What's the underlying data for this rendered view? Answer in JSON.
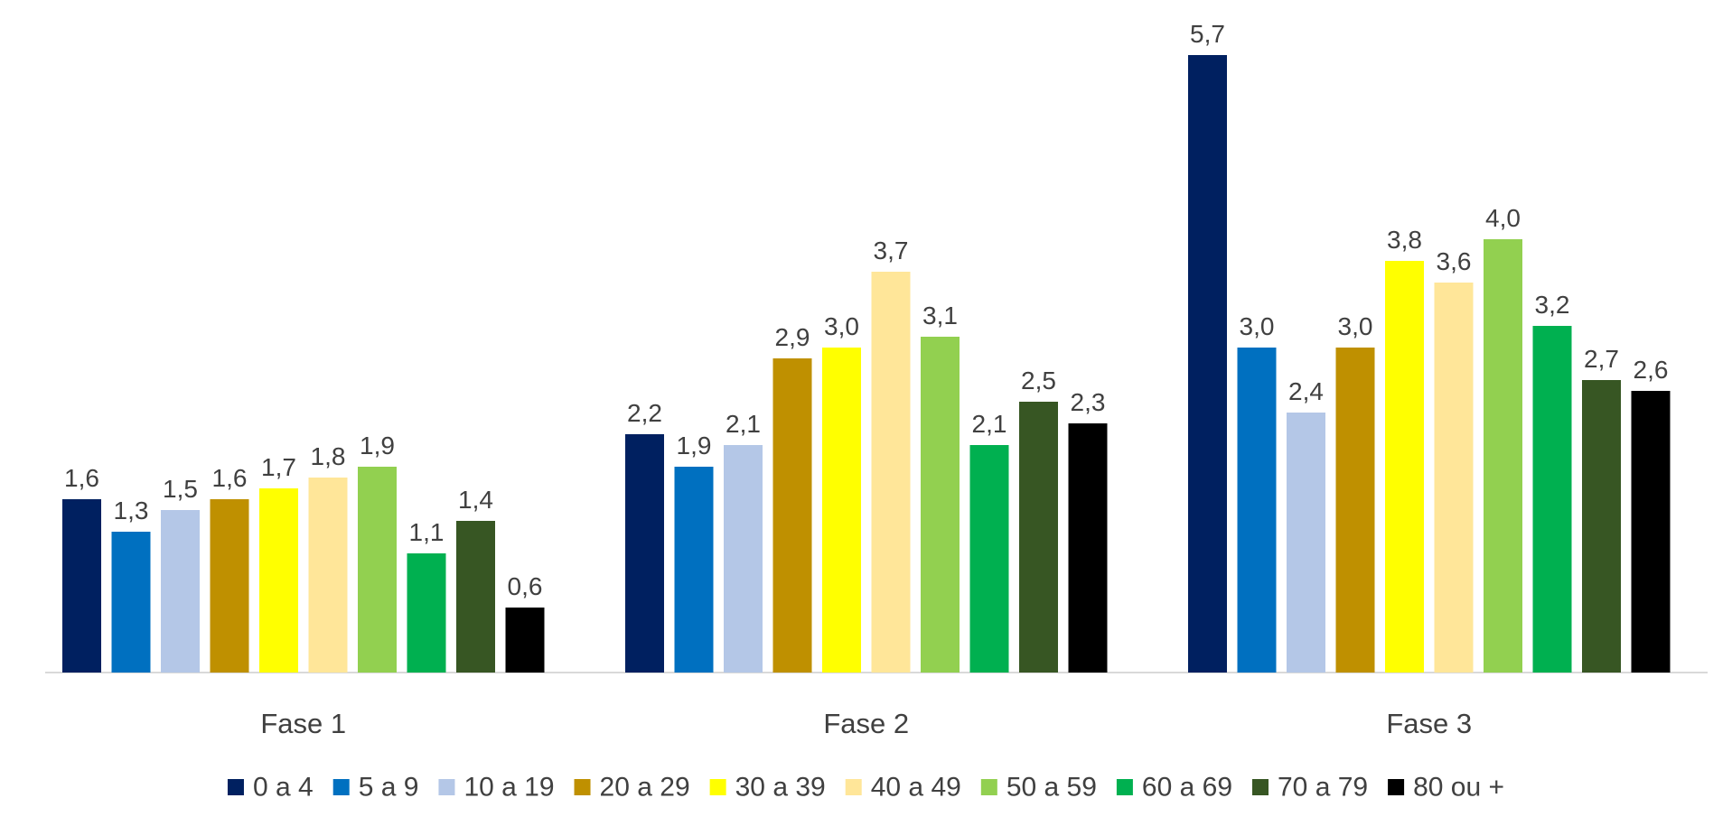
{
  "chart_data": {
    "type": "bar",
    "categories": [
      "Fase 1",
      "Fase 2",
      "Fase 3"
    ],
    "series": [
      {
        "name": "0 a 4",
        "color": "#002060",
        "values": [
          1.6,
          2.2,
          5.7
        ],
        "labels": [
          "1,6",
          "2,2",
          "5,7"
        ]
      },
      {
        "name": "5 a 9",
        "color": "#0070C0",
        "values": [
          1.3,
          1.9,
          3.0
        ],
        "labels": [
          "1,3",
          "1,9",
          "3,0"
        ]
      },
      {
        "name": "10 a 19",
        "color": "#B4C7E7",
        "values": [
          1.5,
          2.1,
          2.4
        ],
        "labels": [
          "1,5",
          "2,1",
          "2,4"
        ]
      },
      {
        "name": "20 a 29",
        "color": "#BF9000",
        "values": [
          1.6,
          2.9,
          3.0
        ],
        "labels": [
          "1,6",
          "2,9",
          "3,0"
        ]
      },
      {
        "name": "30 a 39",
        "color": "#FFFF00",
        "values": [
          1.7,
          3.0,
          3.8
        ],
        "labels": [
          "1,7",
          "3,0",
          "3,8"
        ]
      },
      {
        "name": "40 a 49",
        "color": "#FFE699",
        "values": [
          1.8,
          3.7,
          3.6
        ],
        "labels": [
          "1,8",
          "3,7",
          "3,6"
        ]
      },
      {
        "name": "50 a 59",
        "color": "#92D050",
        "values": [
          1.9,
          3.1,
          4.0
        ],
        "labels": [
          "1,9",
          "3,1",
          "4,0"
        ]
      },
      {
        "name": "60 a 69",
        "color": "#00B050",
        "values": [
          1.1,
          2.1,
          3.2
        ],
        "labels": [
          "1,1",
          "2,1",
          "3,2"
        ]
      },
      {
        "name": "70 a 79",
        "color": "#375623",
        "values": [
          1.4,
          2.5,
          2.7
        ],
        "labels": [
          "1,4",
          "2,5",
          "2,7"
        ]
      },
      {
        "name": "80 ou +",
        "color": "#000000",
        "values": [
          0.6,
          2.3,
          2.6
        ],
        "labels": [
          "0,6",
          "2,3",
          "2,6"
        ]
      }
    ],
    "title": "",
    "xlabel": "",
    "ylabel": "",
    "ylim": [
      0,
      6
    ],
    "grid": false,
    "legend": "bottom"
  }
}
